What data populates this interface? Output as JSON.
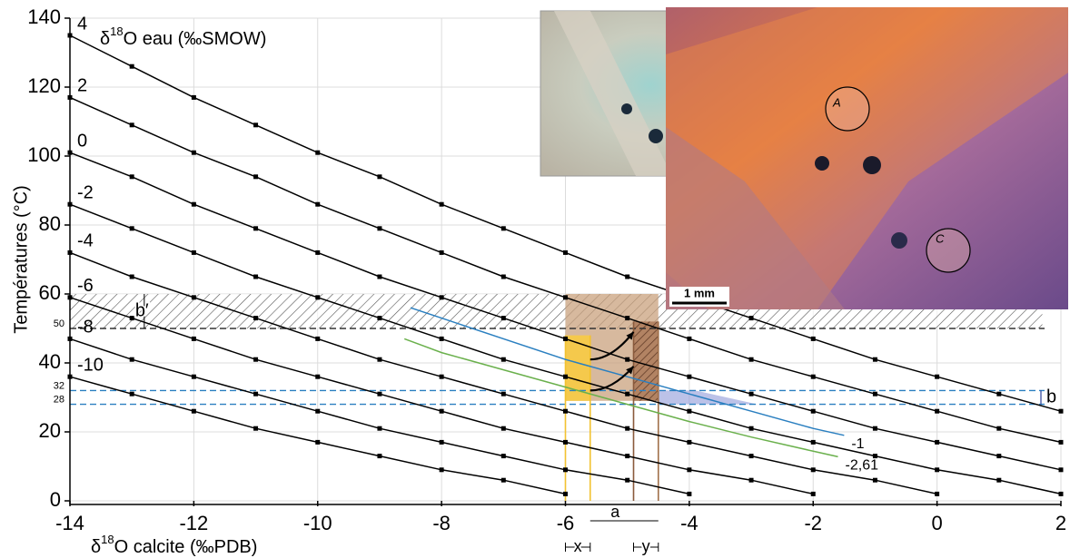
{
  "chart_data": {
    "type": "line",
    "xlabel": {
      "prefix": "δ",
      "sup": "18",
      "suffix": "O calcite (‰PDB)"
    },
    "ylabel": "Températures (°C)",
    "series_title": {
      "prefix": "δ",
      "sup": "18",
      "suffix": "O eau (‰SMOW)"
    },
    "xlim": [
      -14,
      2
    ],
    "ylim": [
      0,
      140
    ],
    "xticks": [
      -14,
      -12,
      -10,
      -8,
      -6,
      -4,
      -2,
      0,
      2
    ],
    "yticks": [
      0,
      20,
      40,
      60,
      80,
      100,
      120,
      140
    ],
    "grid": true,
    "x": [
      -14,
      -13,
      -12,
      -11,
      -10,
      -9,
      -8,
      -7,
      -6,
      -5,
      -4,
      -3,
      -2,
      -1,
      0,
      1,
      2
    ],
    "series": [
      {
        "name": "4",
        "color": "#000000",
        "values": [
          135,
          126,
          117,
          109,
          101,
          94,
          86,
          79,
          72,
          65,
          59,
          53,
          47,
          41,
          36,
          31,
          26
        ]
      },
      {
        "name": "2",
        "color": "#000000",
        "values": [
          117,
          109,
          101,
          94,
          86,
          79,
          72,
          65,
          59,
          53,
          47,
          41,
          36,
          31,
          26,
          21,
          17
        ]
      },
      {
        "name": "0",
        "color": "#000000",
        "values": [
          101,
          94,
          86,
          79,
          72,
          65,
          59,
          53,
          47,
          41,
          36,
          31,
          26,
          21,
          17,
          13,
          9
        ]
      },
      {
        "name": "-2",
        "color": "#000000",
        "values": [
          86,
          79,
          72,
          65,
          59,
          53,
          47,
          41,
          36,
          31,
          26,
          21,
          17,
          13,
          9,
          6,
          2
        ]
      },
      {
        "name": "-4",
        "color": "#000000",
        "values": [
          72,
          65,
          59,
          53,
          47,
          41,
          36,
          31,
          26,
          21,
          17,
          13,
          9,
          6,
          2,
          null,
          null
        ]
      },
      {
        "name": "-6",
        "color": "#000000",
        "values": [
          59,
          53,
          47,
          41,
          36,
          31,
          26,
          21,
          17,
          13,
          9,
          6,
          2,
          null,
          null,
          null,
          null
        ]
      },
      {
        "name": "-8",
        "color": "#000000",
        "values": [
          47,
          41,
          36,
          31,
          26,
          21,
          17,
          13,
          9,
          6,
          2,
          null,
          null,
          null,
          null,
          null,
          null
        ]
      },
      {
        "name": "-10",
        "color": "#000000",
        "values": [
          36,
          31,
          26,
          21,
          17,
          13,
          9,
          6,
          2,
          null,
          null,
          null,
          null,
          null,
          null,
          null,
          null
        ]
      }
    ],
    "extra_series": [
      {
        "name": "-1",
        "color": "#2a7fc0",
        "x": [
          -8.5,
          -8,
          -7,
          -6,
          -5,
          -4,
          -3,
          -2,
          -1.5
        ],
        "values": [
          56,
          53,
          47,
          41,
          36,
          31,
          26,
          21,
          19
        ]
      },
      {
        "name": "-2,61",
        "color": "#6ab04c",
        "x": [
          -8.6,
          -8,
          -7,
          -6,
          -5,
          -4,
          -3,
          -2,
          -1.6
        ],
        "values": [
          47,
          43,
          38,
          33,
          28,
          23,
          18.5,
          14.4,
          12.8
        ]
      }
    ],
    "hatched_band": {
      "x": [
        -14,
        1.7
      ],
      "y": [
        50,
        60
      ]
    },
    "hlines": [
      {
        "value": 50,
        "color": "#333333"
      },
      {
        "value": 32,
        "color": "#2a7fc0"
      },
      {
        "value": 28,
        "color": "#2a7fc0"
      }
    ],
    "boxes": [
      {
        "x": [
          -6,
          -4.5
        ],
        "y": [
          29,
          60
        ],
        "color": "#c9a27e",
        "hatch": false
      },
      {
        "x": [
          -6,
          -5.6
        ],
        "y": [
          29,
          48
        ],
        "color": "#f7c948",
        "hatch": false
      },
      {
        "x": [
          -4.9,
          -4.5
        ],
        "y": [
          29,
          52
        ],
        "color": "#8a5a3c",
        "hatch": true
      }
    ],
    "vlines": [
      {
        "value": -6,
        "top": 48,
        "color": "#f2c230"
      },
      {
        "value": -5.6,
        "top": 48,
        "color": "#f2c230"
      },
      {
        "value": -4.9,
        "top": 52,
        "color": "#8a5a3c"
      },
      {
        "value": -4.5,
        "top": 52,
        "color": "#a0704a"
      }
    ],
    "shaded_polygon": {
      "color": "#8f9ad8",
      "points": [
        [
          -4.5,
          32
        ],
        [
          -3.9,
          32
        ],
        [
          -2.9,
          28
        ],
        [
          -4.5,
          28
        ]
      ]
    },
    "arrows": [
      {
        "from": [
          -5.6,
          41
        ],
        "to": [
          -4.9,
          49
        ]
      },
      {
        "from": [
          -5.6,
          32
        ],
        "to": [
          -4.9,
          39
        ]
      }
    ],
    "range_labels": {
      "x": "x",
      "y": "y",
      "a": "a",
      "b": "b",
      "b_prime": "b′"
    }
  },
  "photos": {
    "scale_bar": "1 mm",
    "spots": [
      "A",
      "C"
    ]
  }
}
